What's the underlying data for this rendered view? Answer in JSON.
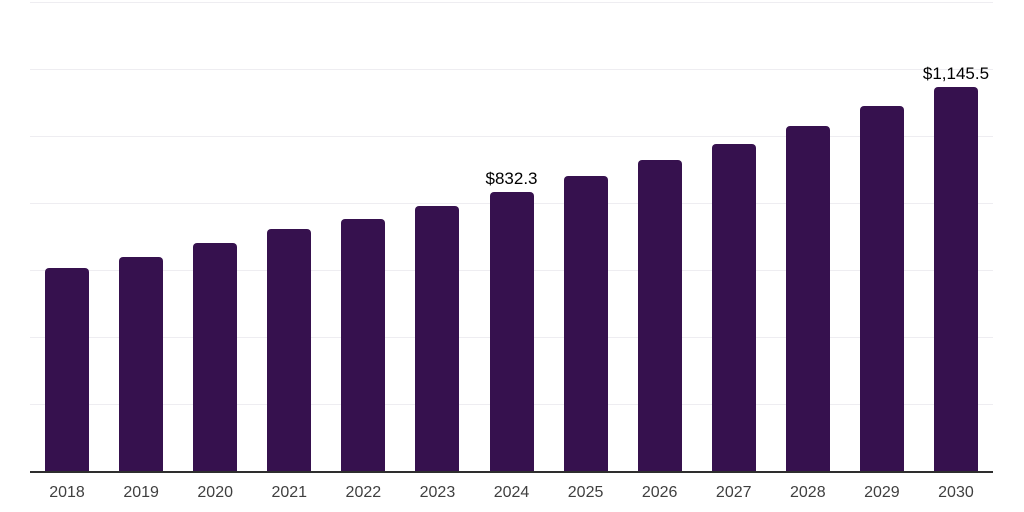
{
  "chart_data": {
    "type": "bar",
    "title": "",
    "xlabel": "",
    "ylabel": "",
    "categories": [
      "2018",
      "2019",
      "2020",
      "2021",
      "2022",
      "2023",
      "2024",
      "2025",
      "2026",
      "2027",
      "2028",
      "2029",
      "2030"
    ],
    "values": [
      604.0,
      636.5,
      681.0,
      722.5,
      753.0,
      791.5,
      832.3,
      879.0,
      927.5,
      976.5,
      1030.0,
      1088.0,
      1145.5
    ],
    "data_labels": [
      "",
      "",
      "",
      "",
      "",
      "",
      "$832.3",
      "",
      "",
      "",
      "",
      "",
      "$1,145.5"
    ],
    "ylim": [
      0,
      1400
    ],
    "gridline_step": 200,
    "grid": true,
    "y_tick_labels_visible": false,
    "legend_position": "none",
    "colors": {
      "bar": "#36114E",
      "grid": "#eeedf1",
      "axis": "#2e2e2e",
      "tick_text": "#3f3f3f",
      "value_label_text": "#000000",
      "background": "#ffffff"
    }
  }
}
